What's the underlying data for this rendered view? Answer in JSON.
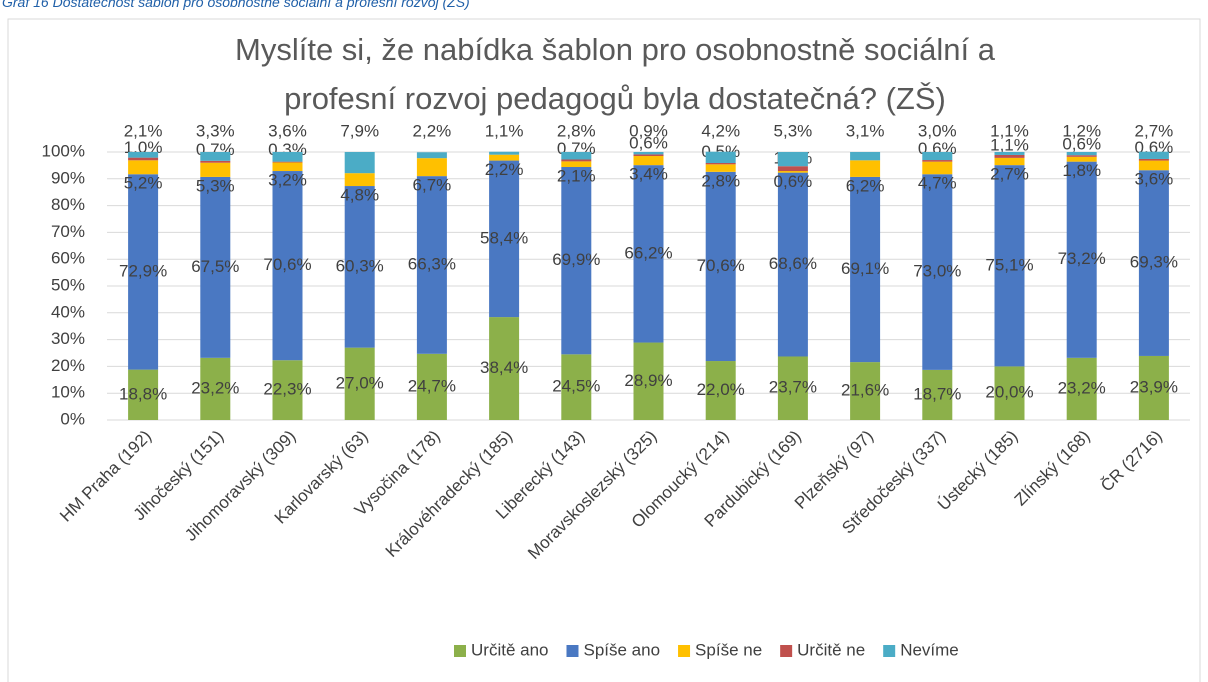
{
  "caption": "Graf 16 Dostatečnost šablon pro osobnostně sociální a profesní rozvoj (ZŠ)",
  "chart_data": {
    "type": "bar",
    "stacked": true,
    "title": [
      "Myslíte si, že nabídka šablon pro osobnostně sociální a",
      "profesní rozvoj pedagogů byla dostatečná? (ZŠ)"
    ],
    "categories": [
      "HM Praha (192)",
      "Jihočeský (151)",
      "Jihomoravský (309)",
      "Karlovarský (63)",
      "Vysočina (178)",
      "Královéhradecký (185)",
      "Liberecký (143)",
      "Moravskoslezský (325)",
      "Olomoucký (214)",
      "Pardubický (169)",
      "Plzeňský (97)",
      "Středočeský (337)",
      "Ústecký (185)",
      "Zlínský (168)",
      "ČR (2716)"
    ],
    "series": [
      {
        "name": "Určitě ano",
        "color": "#8cb04a",
        "values": [
          18.8,
          23.2,
          22.3,
          27.0,
          24.7,
          38.4,
          24.5,
          28.9,
          22.0,
          23.7,
          21.6,
          18.7,
          20.0,
          23.2,
          23.9
        ],
        "value_labels": [
          "18,8%",
          "23,2%",
          "22,3%",
          "27,0%",
          "24,7%",
          "38,4%",
          "24,5%",
          "28,9%",
          "22,0%",
          "23,7%",
          "21,6%",
          "18,7%",
          "20,0%",
          "23,2%",
          "23,9%"
        ]
      },
      {
        "name": "Spíše ano",
        "color": "#4a78c2",
        "values": [
          72.9,
          67.5,
          70.6,
          60.3,
          66.3,
          58.4,
          69.9,
          66.2,
          70.6,
          68.6,
          69.1,
          73.0,
          75.1,
          73.2,
          69.3
        ],
        "value_labels": [
          "72,9%",
          "67,5%",
          "70,6%",
          "60,3%",
          "66,3%",
          "58,4%",
          "69,9%",
          "66,2%",
          "70,6%",
          "68,6%",
          "69,1%",
          "73,0%",
          "75,1%",
          "73,2%",
          "69,3%"
        ]
      },
      {
        "name": "Spíše ne",
        "color": "#ffc000",
        "values": [
          5.2,
          5.3,
          3.2,
          4.8,
          6.7,
          2.2,
          2.1,
          3.4,
          2.8,
          0.6,
          6.2,
          4.7,
          2.7,
          1.8,
          3.6
        ],
        "value_labels": [
          "5,2%",
          "5,3%",
          "3,2%",
          "4,8%",
          "6,7%",
          "2,2%",
          "2,1%",
          "3,4%",
          "2,8%",
          "0,6%",
          "6,2%",
          "4,7%",
          "2,7%",
          "1,8%",
          "3,6%"
        ]
      },
      {
        "name": "Určitě ne",
        "color": "#c0504d",
        "values": [
          1.0,
          0.7,
          0.3,
          null,
          null,
          null,
          0.7,
          0.6,
          0.5,
          1.8,
          null,
          0.6,
          1.1,
          0.6,
          0.6
        ],
        "value_labels": [
          "1,0%",
          "0,7%",
          "0,3%",
          null,
          null,
          null,
          "0,7%",
          "0,6%",
          "0,5%",
          "1,8%",
          null,
          "0,6%",
          "1,1%",
          "0,6%",
          "0,6%"
        ]
      },
      {
        "name": "Nevíme",
        "color": "#4bacc6",
        "values": [
          2.1,
          3.3,
          3.6,
          7.9,
          2.2,
          1.1,
          2.8,
          0.9,
          4.2,
          5.3,
          3.1,
          3.0,
          1.1,
          1.2,
          2.7
        ],
        "value_labels": [
          "2,1%",
          "3,3%",
          "3,6%",
          "7,9%",
          "2,2%",
          "1,1%",
          "2,8%",
          "0,9%",
          "4,2%",
          "5,3%",
          "3,1%",
          "3,0%",
          "1,1%",
          "1,2%",
          "2,7%"
        ]
      }
    ],
    "ylim": [
      0,
      100
    ],
    "yticks": [
      {
        "value": 0,
        "label": "0%"
      },
      {
        "value": 10,
        "label": "10%"
      },
      {
        "value": 20,
        "label": "20%"
      },
      {
        "value": 30,
        "label": "30%"
      },
      {
        "value": 40,
        "label": "40%"
      },
      {
        "value": 50,
        "label": "50%"
      },
      {
        "value": 60,
        "label": "60%"
      },
      {
        "value": 70,
        "label": "70%"
      },
      {
        "value": 80,
        "label": "80%"
      },
      {
        "value": 90,
        "label": "90%"
      },
      {
        "value": 100,
        "label": "100%"
      }
    ],
    "grid": true,
    "legend": "bottom"
  }
}
